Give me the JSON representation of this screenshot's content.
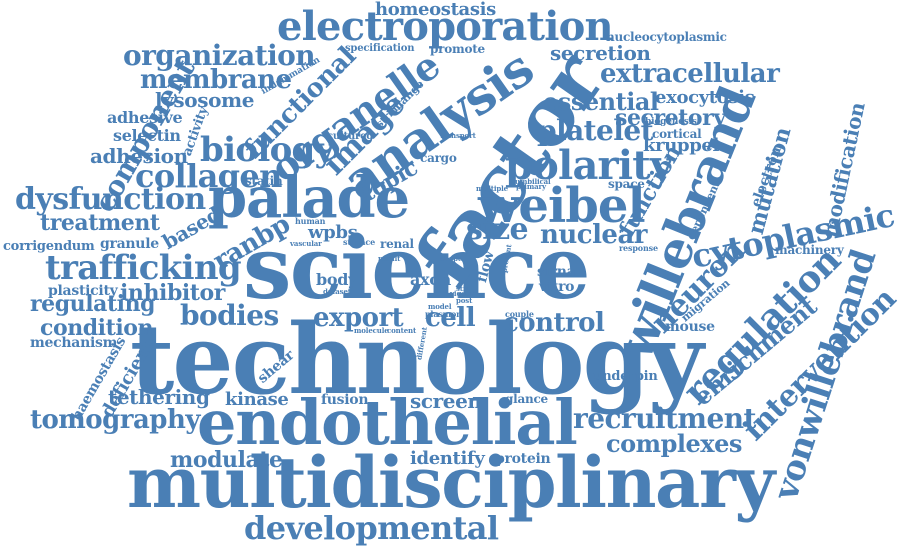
{
  "accent_color": "#4a7fb5",
  "words": [
    {
      "text": "technology"
    },
    {
      "text": "science"
    },
    {
      "text": "multidisciplinary"
    },
    {
      "text": "endothelial"
    },
    {
      "text": "factor"
    },
    {
      "text": "palade"
    },
    {
      "text": "willebrand"
    },
    {
      "text": "analysis"
    },
    {
      "text": "weibel"
    },
    {
      "text": "vonwillebrand"
    },
    {
      "text": "electroporation"
    },
    {
      "text": "organelle"
    },
    {
      "text": "polarity"
    },
    {
      "text": "cytoplasmic"
    },
    {
      "text": "regulation"
    },
    {
      "text": "developmental"
    },
    {
      "text": "trafficking"
    },
    {
      "text": "recruitment"
    },
    {
      "text": "intervention"
    },
    {
      "text": "neuron"
    },
    {
      "text": "image"
    },
    {
      "text": "biology"
    },
    {
      "text": "collagen"
    },
    {
      "text": "dysfunction"
    },
    {
      "text": "tomography"
    },
    {
      "text": "organization"
    },
    {
      "text": "size"
    },
    {
      "text": "nuclear"
    },
    {
      "text": "extracellular"
    },
    {
      "text": "platelet"
    },
    {
      "text": "component"
    },
    {
      "text": "membrane"
    },
    {
      "text": "functional"
    },
    {
      "text": "bodies"
    },
    {
      "text": "export"
    },
    {
      "text": "control"
    },
    {
      "text": "enrichment"
    },
    {
      "text": "complexes"
    },
    {
      "text": "treatment"
    },
    {
      "text": "ranbp"
    },
    {
      "text": "essential"
    },
    {
      "text": "secretory"
    },
    {
      "text": "function"
    },
    {
      "text": "mutation"
    },
    {
      "text": "modification"
    },
    {
      "text": "regulating"
    },
    {
      "text": "inhibitor"
    },
    {
      "text": "condition"
    },
    {
      "text": "lysosome"
    },
    {
      "text": "adhesion"
    },
    {
      "text": "secretion"
    },
    {
      "text": "homeostasis"
    },
    {
      "text": "exocytosis"
    },
    {
      "text": "kruppel"
    },
    {
      "text": "modulate"
    },
    {
      "text": "tethering"
    },
    {
      "text": "kinase"
    },
    {
      "text": "screen"
    },
    {
      "text": "cell"
    },
    {
      "text": "topic"
    },
    {
      "text": "based"
    },
    {
      "text": "wpbs"
    },
    {
      "text": "body"
    },
    {
      "text": "axon"
    },
    {
      "text": "identify"
    },
    {
      "text": "protein"
    },
    {
      "text": "deficient"
    },
    {
      "text": "plasticity"
    },
    {
      "text": "mechanism"
    },
    {
      "text": "haemostasis"
    },
    {
      "text": "shear"
    },
    {
      "text": "fusion"
    },
    {
      "text": "glance"
    },
    {
      "text": "underpin"
    },
    {
      "text": "mouse"
    },
    {
      "text": "migration"
    },
    {
      "text": "dependent"
    },
    {
      "text": "machinery"
    },
    {
      "text": "electron"
    },
    {
      "text": "cortical"
    },
    {
      "text": "space"
    },
    {
      "text": "biogenesis"
    },
    {
      "text": "statin"
    },
    {
      "text": "granule"
    },
    {
      "text": "corrigendum"
    },
    {
      "text": "adhesive"
    },
    {
      "text": "selectin"
    },
    {
      "text": "activity"
    },
    {
      "text": "nucleocytoplasmic"
    },
    {
      "text": "specification"
    },
    {
      "text": "promote"
    },
    {
      "text": "inflammation"
    },
    {
      "text": "string"
    },
    {
      "text": "change"
    },
    {
      "text": "cultured"
    },
    {
      "text": "cargo"
    },
    {
      "text": "transport"
    },
    {
      "text": "renal"
    },
    {
      "text": "sirna"
    },
    {
      "text": "vitro"
    },
    {
      "text": "flow"
    },
    {
      "text": "human"
    },
    {
      "text": "vascular"
    },
    {
      "text": "surface"
    },
    {
      "text": "dataset"
    },
    {
      "text": "plasmon"
    },
    {
      "text": "molecule"
    },
    {
      "text": "content"
    },
    {
      "text": "couple"
    },
    {
      "text": "primary"
    },
    {
      "text": "umbilical"
    },
    {
      "text": "multiple"
    },
    {
      "text": "response"
    },
    {
      "text": "different"
    },
    {
      "text": "present"
    },
    {
      "text": "result"
    },
    {
      "text": "model"
    },
    {
      "text": "vigour"
    },
    {
      "text": "post"
    },
    {
      "text": "stir"
    },
    {
      "text": "shape"
    }
  ]
}
